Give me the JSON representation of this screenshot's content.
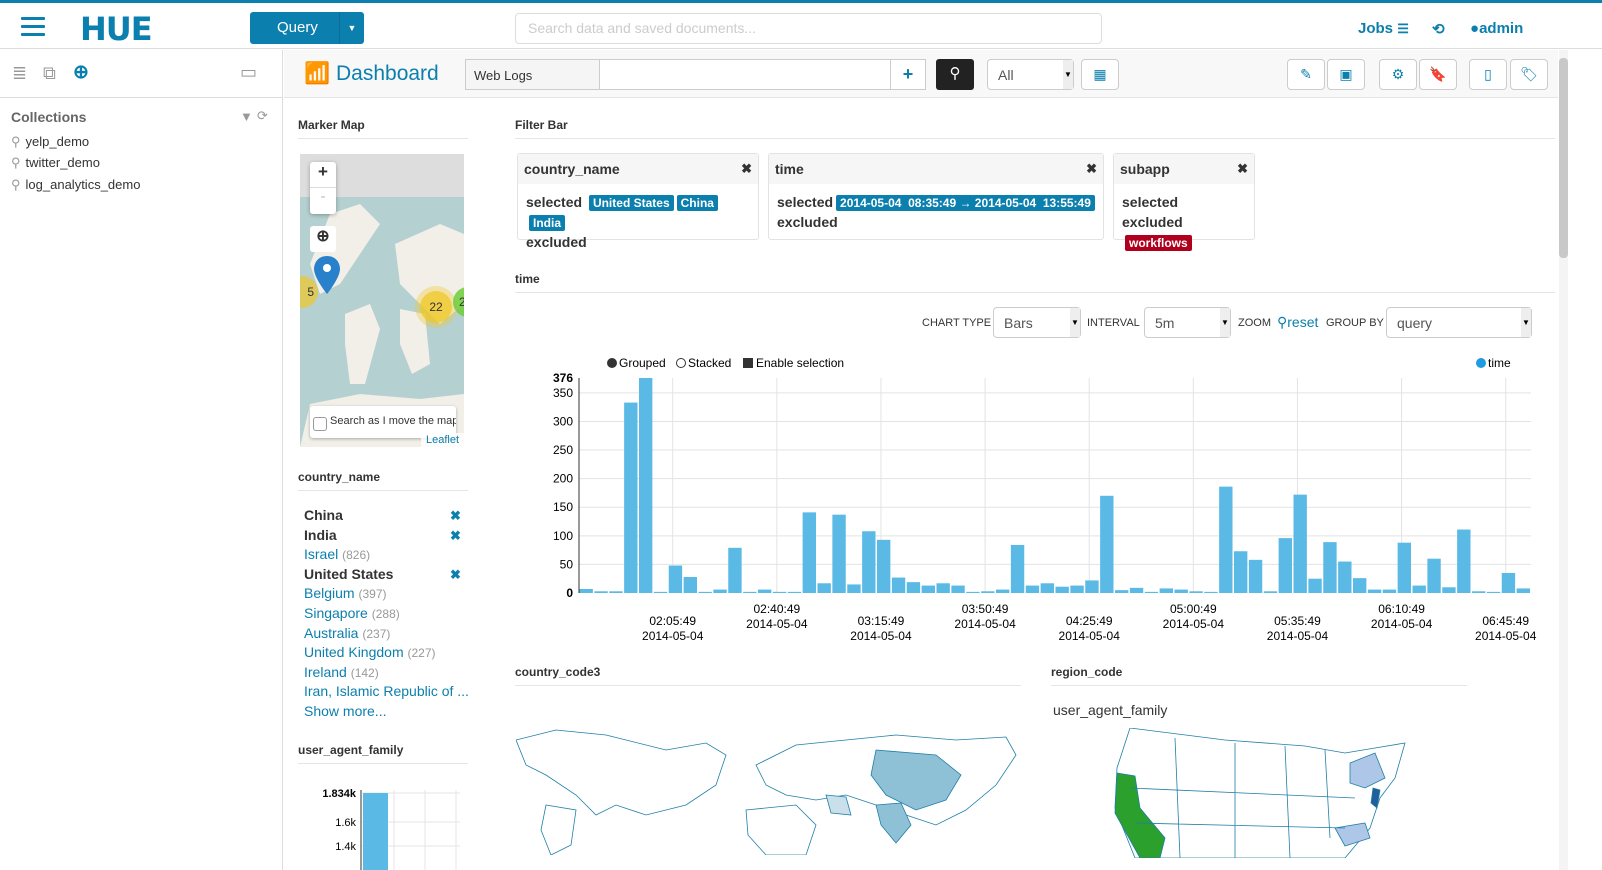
{
  "header": {
    "logo": "HUE",
    "query_button": "Query",
    "search_placeholder": "Search data and saved documents...",
    "jobs": "Jobs",
    "user": "admin",
    "accent": "#0B7FAD"
  },
  "left_panel": {
    "collections_title": "Collections",
    "collections": [
      "yelp_demo",
      "twitter_demo",
      "log_analytics_demo"
    ]
  },
  "toolbar": {
    "title": "Dashboard",
    "collection": "Web Logs",
    "query_value": "",
    "filter_select": "All"
  },
  "marker_map": {
    "title": "Marker Map",
    "zoom_in": "+",
    "zoom_out": "-",
    "clusters": [
      "5",
      "22",
      "2"
    ],
    "search_as_move": "Search as I move the map",
    "attribution": "Leaflet"
  },
  "country_facet": {
    "title": "country_name",
    "items": [
      {
        "name": "China",
        "count": "",
        "selected": true
      },
      {
        "name": "India",
        "count": "",
        "selected": true
      },
      {
        "name": "Israel",
        "count": "(826)",
        "selected": false
      },
      {
        "name": "United States",
        "count": "",
        "selected": true
      },
      {
        "name": "Belgium",
        "count": "(397)",
        "selected": false
      },
      {
        "name": "Singapore",
        "count": "(288)",
        "selected": false
      },
      {
        "name": "Australia",
        "count": "(237)",
        "selected": false
      },
      {
        "name": "United Kingdom",
        "count": "(227)",
        "selected": false
      },
      {
        "name": "Ireland",
        "count": "(142)",
        "selected": false
      },
      {
        "name": "Iran, Islamic Republic of ...",
        "count": "",
        "selected": false
      }
    ],
    "show_more": "Show more..."
  },
  "user_agent_widget": {
    "title": "user_agent_family",
    "ticks": [
      "1.834k",
      "1.6k",
      "1.4k"
    ]
  },
  "filter_bar": {
    "title": "Filter Bar",
    "selected_label": "selected",
    "excluded_label": "excluded",
    "cards": [
      {
        "field": "country_name",
        "selected": [
          "United States",
          "China",
          "India"
        ],
        "excluded": []
      },
      {
        "field": "time",
        "selected": [
          "2014-05-04  08:35:49 → 2014-05-04  13:55:49"
        ],
        "excluded": []
      },
      {
        "field": "subapp",
        "selected": [],
        "excluded": [
          "workflows"
        ]
      }
    ]
  },
  "time_widget": {
    "title": "time",
    "chart_type_label": "CHART TYPE",
    "chart_type": "Bars",
    "interval_label": "INTERVAL",
    "interval": "5m",
    "zoom_label": "ZOOM",
    "reset": "reset",
    "group_by_label": "GROUP BY",
    "group_by": "query",
    "grouped": "Grouped",
    "stacked": "Stacked",
    "enable_selection": "Enable selection"
  },
  "chart_data": {
    "type": "bar",
    "legend": [
      "time"
    ],
    "legend_position": "top-right",
    "ylim": [
      0,
      376
    ],
    "yticks": [
      0,
      50,
      100,
      150,
      200,
      250,
      300,
      350,
      376
    ],
    "grid": true,
    "color": "#5BBAE5",
    "xtick_labels": [
      [
        "02:05:49",
        "2014-05-04"
      ],
      [
        "02:40:49",
        "2014-05-04"
      ],
      [
        "03:15:49",
        "2014-05-04"
      ],
      [
        "03:50:49",
        "2014-05-04"
      ],
      [
        "04:25:49",
        "2014-05-04"
      ],
      [
        "05:00:49",
        "2014-05-04"
      ],
      [
        "05:35:49",
        "2014-05-04"
      ],
      [
        "06:10:49",
        "2014-05-04"
      ],
      [
        "06:45:49",
        "2014-05-04"
      ]
    ],
    "values": [
      7,
      3,
      3,
      333,
      376,
      2,
      48,
      28,
      2,
      6,
      79,
      2,
      6,
      2,
      2,
      141,
      17,
      137,
      15,
      108,
      93,
      27,
      19,
      13,
      17,
      13,
      2,
      3,
      6,
      84,
      13,
      17,
      11,
      13,
      22,
      170,
      5,
      9,
      2,
      8,
      6,
      3,
      2,
      186,
      73,
      58,
      3,
      96,
      172,
      25,
      89,
      55,
      26,
      6,
      6,
      88,
      13,
      60,
      10,
      111,
      3,
      2,
      35,
      8
    ]
  },
  "country_code3": {
    "title": "country_code3"
  },
  "region_code": {
    "title": "region_code",
    "subtitle": "user_agent_family"
  }
}
